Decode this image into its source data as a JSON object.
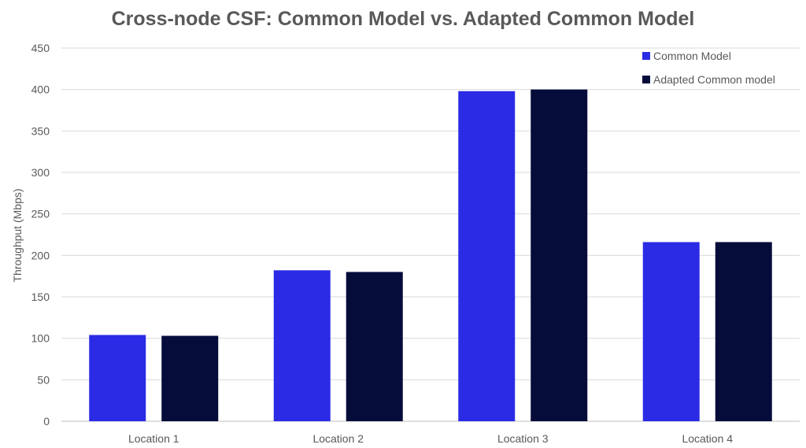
{
  "chart_data": {
    "type": "bar",
    "title": "Cross-node CSF: Common Model vs. Adapted Common Model",
    "xlabel": "",
    "ylabel": "Throughput (Mbps)",
    "categories": [
      "Location 1",
      "Location 2",
      "Location 3",
      "Location 4"
    ],
    "series": [
      {
        "name": "Common Model",
        "values": [
          104,
          182,
          398,
          216
        ],
        "color": "#2b2be6"
      },
      {
        "name": "Adapted Common model",
        "values": [
          103,
          180,
          400,
          216
        ],
        "color": "#060c3a"
      }
    ],
    "ylim": [
      0,
      450
    ],
    "yticks": [
      0,
      50,
      100,
      150,
      200,
      250,
      300,
      350,
      400,
      450
    ],
    "grid": true,
    "legend_position": "top-right"
  }
}
